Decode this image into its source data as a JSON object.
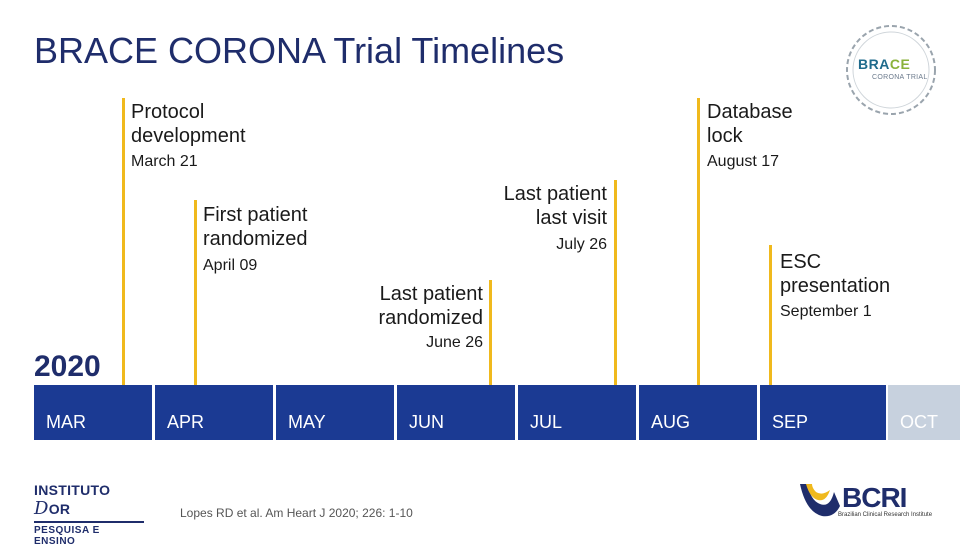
{
  "title": "BRACE CORONA Trial Timelines",
  "brace_logo": {
    "text_bra": "BRA",
    "text_ce": "CE",
    "subtitle": "CORONA TRIAL"
  },
  "year": "2020",
  "events": [
    {
      "title_line1": "Protocol",
      "title_line2": "development",
      "date": "March 21"
    },
    {
      "title_line1": "First patient",
      "title_line2": "randomized",
      "date": "April 09"
    },
    {
      "title_line1": "Last patient",
      "title_line2": "randomized",
      "date": "June 26"
    },
    {
      "title_line1": "Last patient",
      "title_line2": "last visit",
      "date": "July 26"
    },
    {
      "title_line1": "Database",
      "title_line2": "lock",
      "date": "August 17"
    },
    {
      "title_line1": "ESC",
      "title_line2": "presentation",
      "date": "September 1"
    }
  ],
  "months": [
    "MAR",
    "APR",
    "MAY",
    "JUN",
    "JUL",
    "AUG",
    "SEP",
    "OCT"
  ],
  "institute": {
    "line1_a": "INSTITUTO",
    "line1_b": "D",
    "line1_c": "OR",
    "line2": "PESQUISA E ENSINO"
  },
  "citation": "Lopes RD et al. Am Heart J 2020; 226: 1-10",
  "bcri": {
    "text": "BCRI",
    "subtitle": "Brazilian Clinical Research Institute"
  },
  "colors": {
    "navy": "#1b3a93",
    "title": "#1f2d6b",
    "accent": "#f0b91d",
    "oct": "#c7d1de"
  }
}
